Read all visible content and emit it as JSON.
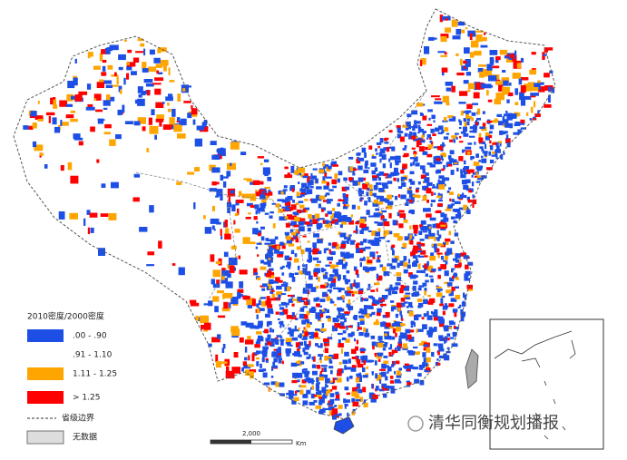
{
  "legend": {
    "title": "2010密度/2000密度",
    "items": [
      {
        "label": ".00 - .90",
        "color": "#1d4fe6"
      },
      {
        "label": ".91 - 1.10",
        "color": "#ffffff"
      },
      {
        "label": "1.11 - 1.25",
        "color": "#ffa500"
      },
      {
        "label": "> 1.25",
        "color": "#ff0000"
      }
    ],
    "boundary": "省级边界",
    "nodata": "无数据"
  },
  "scale": {
    "label": "2,000",
    "unit": "Km"
  },
  "watermark": "清华同衡规划播报"
}
